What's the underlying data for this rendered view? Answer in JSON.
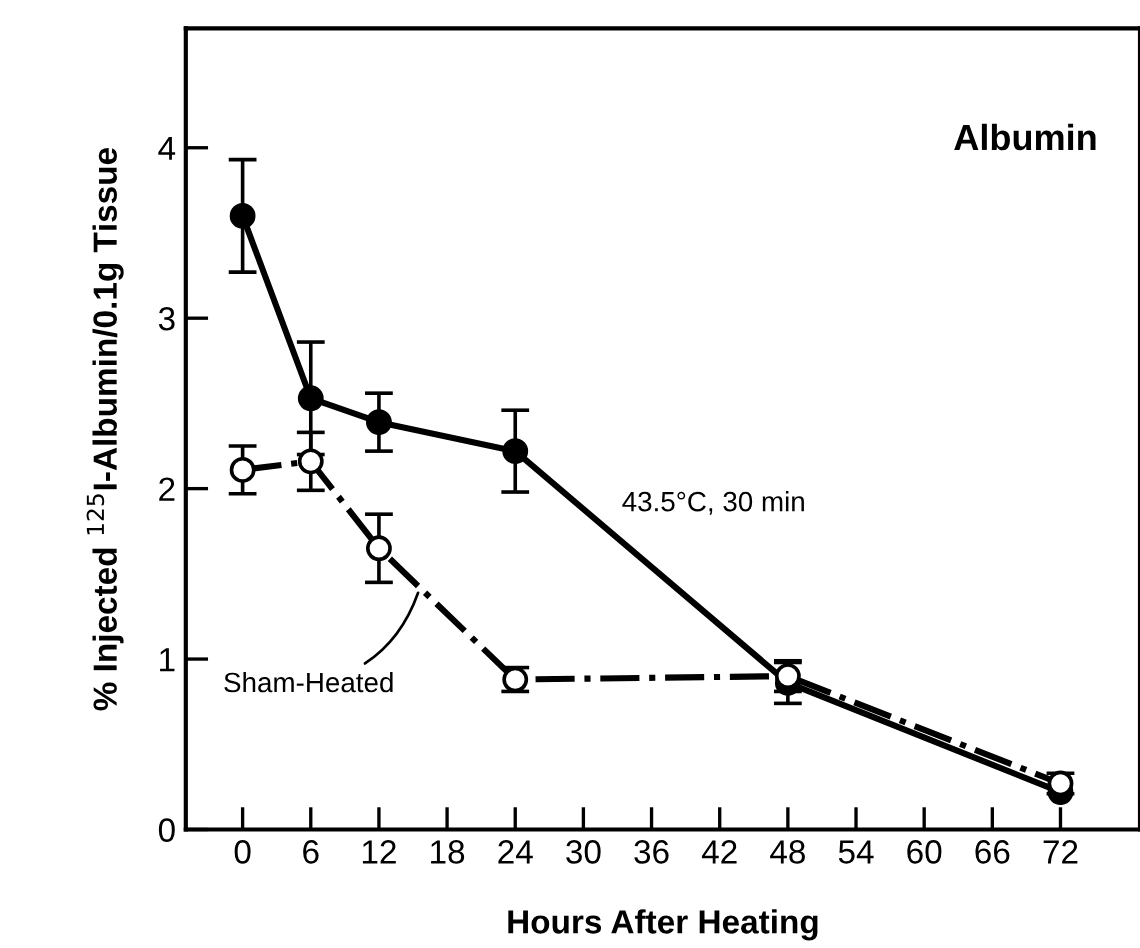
{
  "chart_data": {
    "type": "line",
    "xlabel": "Hours After Heating",
    "ylabel": "% Injected $^{125}$I-Albumin/0.1g Tissue",
    "annotations": [
      "Albumin"
    ],
    "x": [
      0,
      6,
      12,
      24,
      48,
      72
    ],
    "series": [
      {
        "name": "43.5°C, 30 min",
        "color": "#000000",
        "values": [
          3.6,
          2.53,
          2.39,
          2.22,
          0.86,
          0.22
        ],
        "errors": [
          0.33,
          0.33,
          0.17,
          0.24,
          0.12,
          null
        ],
        "line_style": "solid",
        "marker": "circle"
      },
      {
        "name": "Sham-Heated",
        "color": "#000000",
        "values": [
          2.11,
          2.16,
          1.65,
          0.88,
          0.9,
          0.27
        ],
        "errors": [
          0.14,
          0.17,
          0.2,
          0.07,
          0.09,
          0.06
        ],
        "line_style": "dashdot",
        "marker": "circle"
      }
    ],
    "xlim": [
      -5,
      79
    ],
    "ylim": [
      0,
      4.7
    ],
    "xticks": [
      0,
      6,
      12,
      18,
      24,
      30,
      36,
      42,
      48,
      54,
      60,
      66,
      72
    ],
    "yticks": [
      0,
      1,
      2,
      3,
      4
    ],
    "grid": false,
    "legend": false
  }
}
